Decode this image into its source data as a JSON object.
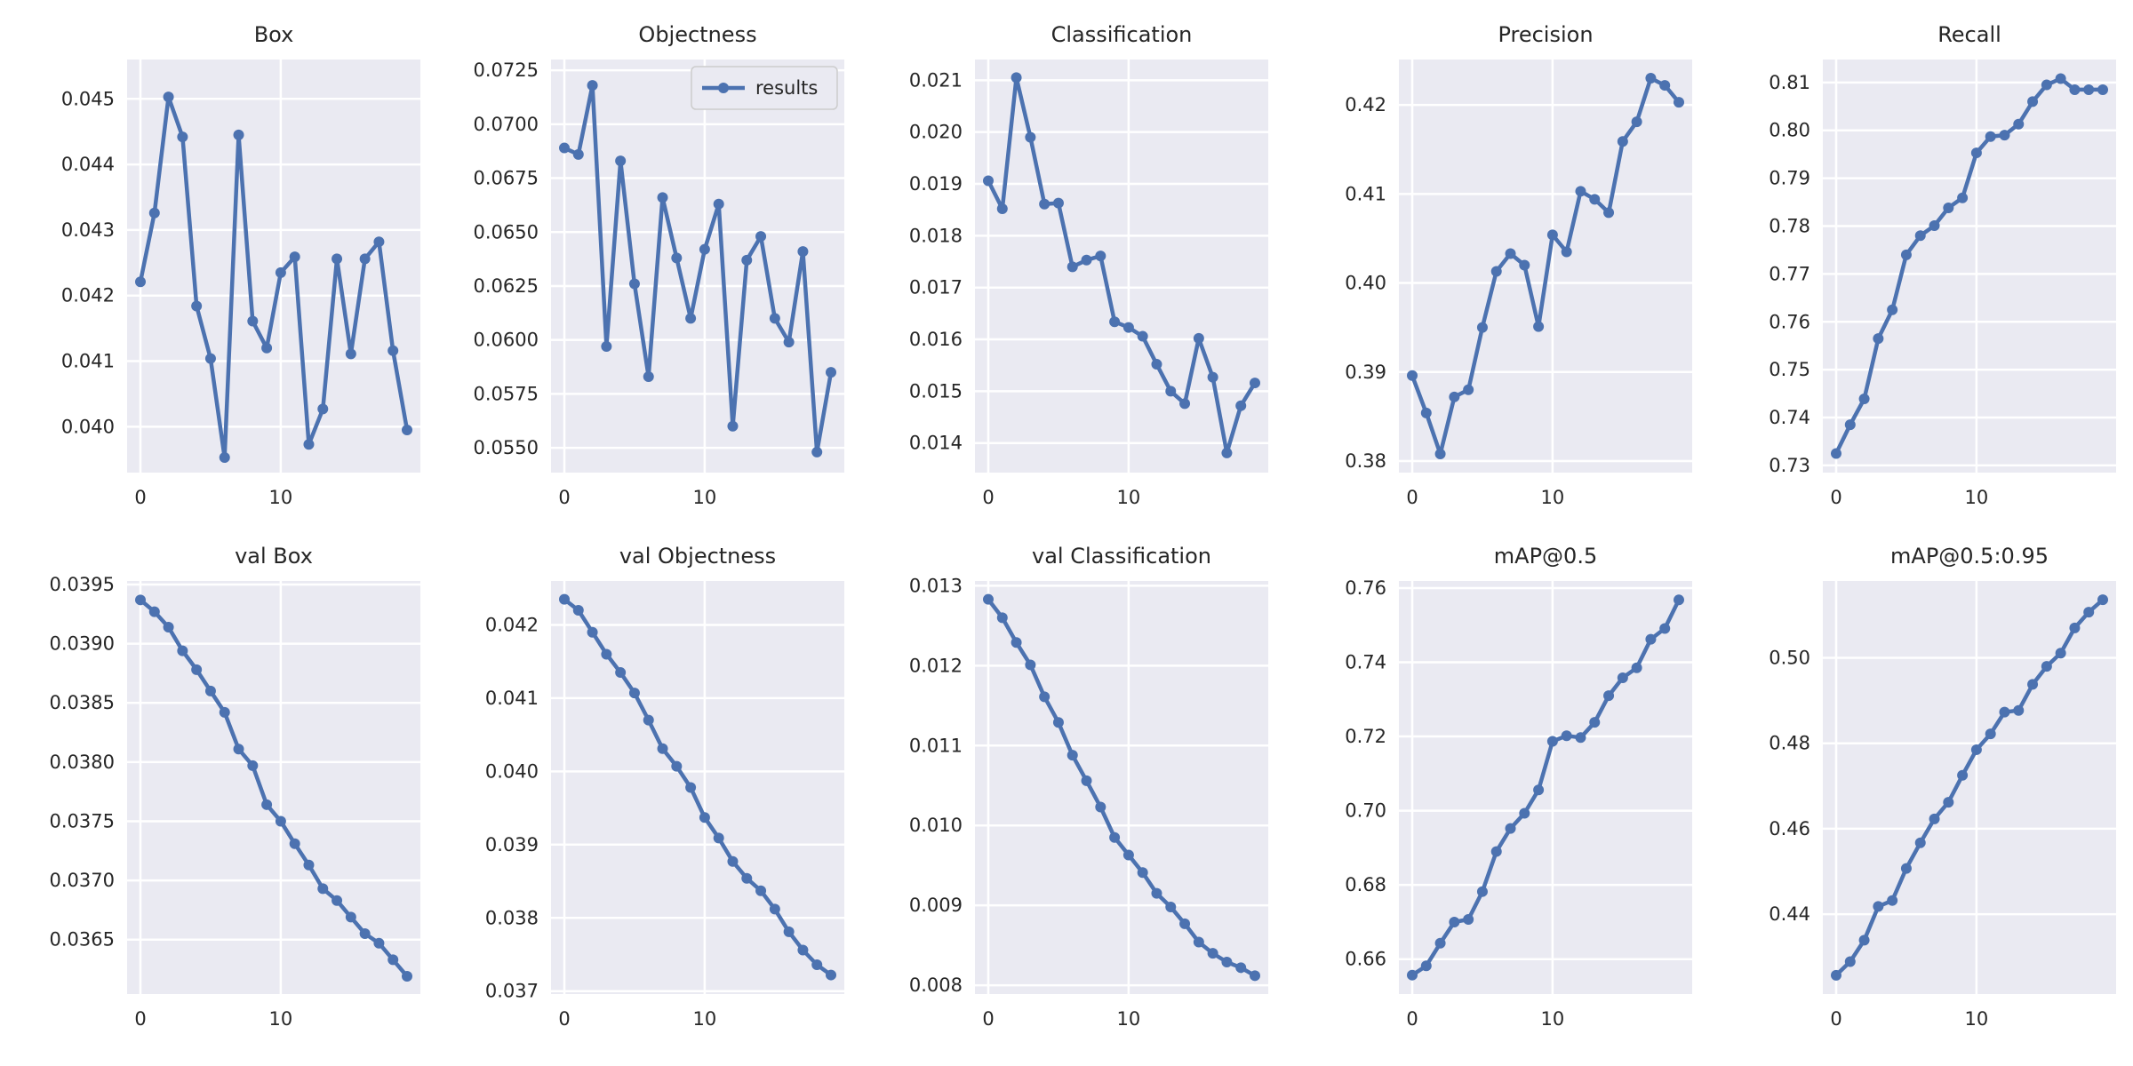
{
  "chart_data": [
    {
      "type": "line",
      "title": "Box",
      "x": [
        0,
        1,
        2,
        3,
        4,
        5,
        6,
        7,
        8,
        9,
        10,
        11,
        12,
        13,
        14,
        15,
        16,
        17,
        18,
        19
      ],
      "series": [
        {
          "values": [
            0.04221,
            0.04326,
            0.04503,
            0.04442,
            0.04184,
            0.04104,
            0.03953,
            0.04445,
            0.04161,
            0.0412,
            0.04235,
            0.04259,
            0.03973,
            0.04027,
            0.04256,
            0.04111,
            0.04256,
            0.04282,
            0.04116,
            0.03995
          ]
        }
      ],
      "yticks": [
        "0.040",
        "0.041",
        "0.042",
        "0.043",
        "0.044",
        "0.045"
      ],
      "ytick_values": [
        0.04,
        0.041,
        0.042,
        0.043,
        0.044,
        0.045
      ],
      "xticks": [
        "0",
        "10"
      ],
      "xtick_values": [
        0,
        10
      ],
      "ylim": [
        0.0393,
        0.0456
      ],
      "xlim": [
        -0.95,
        19.95
      ],
      "grid": true
    },
    {
      "type": "line",
      "title": "Objectness",
      "x": [
        0,
        1,
        2,
        3,
        4,
        5,
        6,
        7,
        8,
        9,
        10,
        11,
        12,
        13,
        14,
        15,
        16,
        17,
        18,
        19
      ],
      "series": [
        {
          "name": "results",
          "values": [
            0.0689,
            0.0686,
            0.0718,
            0.0597,
            0.0683,
            0.0626,
            0.0583,
            0.0666,
            0.0638,
            0.061,
            0.0642,
            0.0663,
            0.056,
            0.0637,
            0.0648,
            0.061,
            0.0599,
            0.0641,
            0.0548,
            0.0585
          ]
        }
      ],
      "legend": {
        "entries": [
          "results"
        ],
        "position": "top-right"
      },
      "yticks": [
        "0.0550",
        "0.0575",
        "0.0600",
        "0.0625",
        "0.0650",
        "0.0675",
        "0.0700",
        "0.0725"
      ],
      "ytick_values": [
        0.055,
        0.0575,
        0.06,
        0.0625,
        0.065,
        0.0675,
        0.07,
        0.0725
      ],
      "xticks": [
        "0",
        "10"
      ],
      "xtick_values": [
        0,
        10
      ],
      "ylim": [
        0.05385,
        0.073
      ],
      "xlim": [
        -0.95,
        19.95
      ],
      "grid": true
    },
    {
      "type": "line",
      "title": "Classification",
      "x": [
        0,
        1,
        2,
        3,
        4,
        5,
        6,
        7,
        8,
        9,
        10,
        11,
        12,
        13,
        14,
        15,
        16,
        17,
        18,
        19
      ],
      "series": [
        {
          "values": [
            0.01906,
            0.01852,
            0.02105,
            0.0199,
            0.01861,
            0.01863,
            0.0174,
            0.01753,
            0.01761,
            0.01634,
            0.01623,
            0.01606,
            0.01552,
            0.015,
            0.01476,
            0.01602,
            0.01527,
            0.01381,
            0.01472,
            0.01516
          ]
        }
      ],
      "yticks": [
        "0.014",
        "0.015",
        "0.016",
        "0.017",
        "0.018",
        "0.019",
        "0.020",
        "0.021"
      ],
      "ytick_values": [
        0.014,
        0.015,
        0.016,
        0.017,
        0.018,
        0.019,
        0.02,
        0.021
      ],
      "xticks": [
        "0",
        "10"
      ],
      "xtick_values": [
        0,
        10
      ],
      "ylim": [
        0.01343,
        0.0214
      ],
      "xlim": [
        -0.95,
        19.95
      ],
      "grid": true
    },
    {
      "type": "line",
      "title": "Precision",
      "x": [
        0,
        1,
        2,
        3,
        4,
        5,
        6,
        7,
        8,
        9,
        10,
        11,
        12,
        13,
        14,
        15,
        16,
        17,
        18,
        19
      ],
      "series": [
        {
          "values": [
            0.3896,
            0.3854,
            0.3808,
            0.3872,
            0.388,
            0.395,
            0.4013,
            0.4033,
            0.402,
            0.3951,
            0.4054,
            0.4035,
            0.4103,
            0.4094,
            0.4079,
            0.4159,
            0.4181,
            0.423,
            0.4222,
            0.4203
          ]
        }
      ],
      "yticks": [
        "0.38",
        "0.39",
        "0.40",
        "0.41",
        "0.42"
      ],
      "ytick_values": [
        0.38,
        0.39,
        0.4,
        0.41,
        0.42
      ],
      "xticks": [
        "0",
        "10"
      ],
      "xtick_values": [
        0,
        10
      ],
      "ylim": [
        0.3787,
        0.4251
      ],
      "xlim": [
        -0.95,
        19.95
      ],
      "grid": true
    },
    {
      "type": "line",
      "title": "Recall",
      "x": [
        0,
        1,
        2,
        3,
        4,
        5,
        6,
        7,
        8,
        9,
        10,
        11,
        12,
        13,
        14,
        15,
        16,
        17,
        18,
        19
      ],
      "series": [
        {
          "values": [
            0.7325,
            0.7385,
            0.7439,
            0.7565,
            0.7625,
            0.774,
            0.778,
            0.7801,
            0.7838,
            0.7859,
            0.7953,
            0.7987,
            0.799,
            0.8013,
            0.806,
            0.8095,
            0.8108,
            0.8085,
            0.8085,
            0.8085
          ]
        }
      ],
      "yticks": [
        "0.73",
        "0.74",
        "0.75",
        "0.76",
        "0.77",
        "0.78",
        "0.79",
        "0.80",
        "0.81"
      ],
      "ytick_values": [
        0.73,
        0.74,
        0.75,
        0.76,
        0.77,
        0.78,
        0.79,
        0.8,
        0.81
      ],
      "xticks": [
        "0",
        "10"
      ],
      "xtick_values": [
        0,
        10
      ],
      "ylim": [
        0.7285,
        0.8148
      ],
      "xlim": [
        -0.95,
        19.95
      ],
      "grid": true
    },
    {
      "type": "line",
      "title": "val Box",
      "x": [
        0,
        1,
        2,
        3,
        4,
        5,
        6,
        7,
        8,
        9,
        10,
        11,
        12,
        13,
        14,
        15,
        16,
        17,
        18,
        19
      ],
      "series": [
        {
          "values": [
            0.03937,
            0.03927,
            0.03914,
            0.03894,
            0.03878,
            0.0386,
            0.03842,
            0.03811,
            0.03797,
            0.03764,
            0.0375,
            0.03731,
            0.03713,
            0.03693,
            0.03683,
            0.03669,
            0.03655,
            0.03647,
            0.03633,
            0.03619
          ]
        }
      ],
      "yticks": [
        "0.0365",
        "0.0370",
        "0.0375",
        "0.0380",
        "0.0385",
        "0.0390",
        "0.0395"
      ],
      "ytick_values": [
        0.0365,
        0.037,
        0.0375,
        0.038,
        0.0385,
        0.039,
        0.0395
      ],
      "xticks": [
        "0",
        "10"
      ],
      "xtick_values": [
        0,
        10
      ],
      "ylim": [
        0.03604,
        0.03953
      ],
      "xlim": [
        -0.95,
        19.95
      ],
      "grid": true
    },
    {
      "type": "line",
      "title": "val Objectness",
      "x": [
        0,
        1,
        2,
        3,
        4,
        5,
        6,
        7,
        8,
        9,
        10,
        11,
        12,
        13,
        14,
        15,
        16,
        17,
        18,
        19
      ],
      "series": [
        {
          "values": [
            0.04235,
            0.0422,
            0.0419,
            0.0416,
            0.04135,
            0.04107,
            0.0407,
            0.04031,
            0.04007,
            0.03978,
            0.03937,
            0.03909,
            0.03877,
            0.03854,
            0.03837,
            0.03812,
            0.03781,
            0.03756,
            0.03736,
            0.03722
          ]
        }
      ],
      "yticks": [
        "0.037",
        "0.038",
        "0.039",
        "0.040",
        "0.041",
        "0.042"
      ],
      "ytick_values": [
        0.037,
        0.038,
        0.039,
        0.04,
        0.041,
        0.042
      ],
      "xticks": [
        "0",
        "10"
      ],
      "xtick_values": [
        0,
        10
      ],
      "ylim": [
        0.03696,
        0.0426
      ],
      "xlim": [
        -0.95,
        19.95
      ],
      "grid": true
    },
    {
      "type": "line",
      "title": "val Classification",
      "x": [
        0,
        1,
        2,
        3,
        4,
        5,
        6,
        7,
        8,
        9,
        10,
        11,
        12,
        13,
        14,
        15,
        16,
        17,
        18,
        19
      ],
      "series": [
        {
          "values": [
            0.01283,
            0.0126,
            0.01229,
            0.01201,
            0.01161,
            0.01129,
            0.01088,
            0.01056,
            0.01023,
            0.00985,
            0.00963,
            0.00941,
            0.00915,
            0.00898,
            0.00877,
            0.00854,
            0.0084,
            0.00829,
            0.00822,
            0.00812
          ]
        }
      ],
      "yticks": [
        "0.008",
        "0.009",
        "0.010",
        "0.011",
        "0.012",
        "0.013"
      ],
      "ytick_values": [
        0.008,
        0.009,
        0.01,
        0.011,
        0.012,
        0.013
      ],
      "xticks": [
        "0",
        "10"
      ],
      "xtick_values": [
        0,
        10
      ],
      "ylim": [
        0.00789,
        0.01306
      ],
      "xlim": [
        -0.95,
        19.95
      ],
      "grid": true
    },
    {
      "type": "line",
      "title": "mAP@0.5",
      "x": [
        0,
        1,
        2,
        3,
        4,
        5,
        6,
        7,
        8,
        9,
        10,
        11,
        12,
        13,
        14,
        15,
        16,
        17,
        18,
        19
      ],
      "series": [
        {
          "values": [
            0.6557,
            0.6582,
            0.6643,
            0.67,
            0.6707,
            0.6782,
            0.689,
            0.6952,
            0.6993,
            0.7056,
            0.7187,
            0.7202,
            0.7197,
            0.7238,
            0.731,
            0.7358,
            0.7385,
            0.7462,
            0.7491,
            0.7568
          ]
        }
      ],
      "yticks": [
        "0.66",
        "0.68",
        "0.70",
        "0.72",
        "0.74",
        "0.76"
      ],
      "ytick_values": [
        0.66,
        0.68,
        0.7,
        0.72,
        0.74,
        0.76
      ],
      "xticks": [
        "0",
        "10"
      ],
      "xtick_values": [
        0,
        10
      ],
      "ylim": [
        0.6506,
        0.7619
      ],
      "xlim": [
        -0.95,
        19.95
      ],
      "grid": true
    },
    {
      "type": "line",
      "title": "mAP@0.5:0.95",
      "x": [
        0,
        1,
        2,
        3,
        4,
        5,
        6,
        7,
        8,
        9,
        10,
        11,
        12,
        13,
        14,
        15,
        16,
        17,
        18,
        19
      ],
      "series": [
        {
          "values": [
            0.4257,
            0.4289,
            0.4339,
            0.4418,
            0.4432,
            0.4507,
            0.4567,
            0.4623,
            0.4662,
            0.4725,
            0.4785,
            0.4822,
            0.4873,
            0.4877,
            0.4938,
            0.498,
            0.5011,
            0.507,
            0.5107,
            0.5136
          ]
        }
      ],
      "yticks": [
        "0.44",
        "0.46",
        "0.48",
        "0.50"
      ],
      "ytick_values": [
        0.44,
        0.46,
        0.48,
        0.5
      ],
      "xticks": [
        "0",
        "10"
      ],
      "xtick_values": [
        0,
        10
      ],
      "ylim": [
        0.4213,
        0.518
      ],
      "xlim": [
        -0.95,
        19.95
      ],
      "grid": true
    }
  ],
  "colors": {
    "line": "#4c72b0",
    "plot_bg": "#eaeaf2",
    "grid": "#ffffff",
    "text": "#262626",
    "legend_border": "#cccccc"
  }
}
